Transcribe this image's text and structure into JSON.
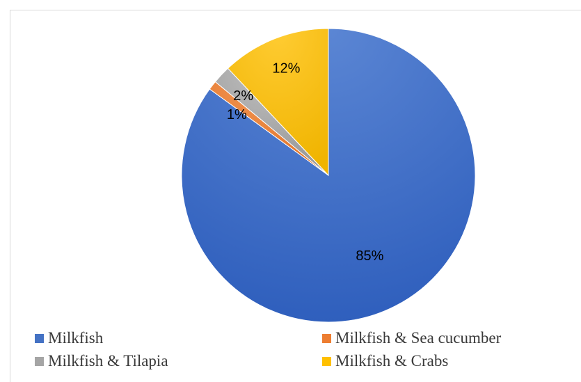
{
  "chart_data": {
    "type": "pie",
    "slices": [
      {
        "label": "Milkfish",
        "value": 85,
        "display": "85%",
        "color": "#4472c4"
      },
      {
        "label": "Milkfish & Sea cucumber",
        "value": 1,
        "display": "1%",
        "color": "#ed7d31"
      },
      {
        "label": "Milkfish & Tilapia",
        "value": 2,
        "display": "2%",
        "color": "#a5a5a5"
      },
      {
        "label": "Milkfish & Crabs",
        "value": 12,
        "display": "12%",
        "color": "#ffc000"
      }
    ],
    "legend_position": "bottom",
    "title": ""
  }
}
